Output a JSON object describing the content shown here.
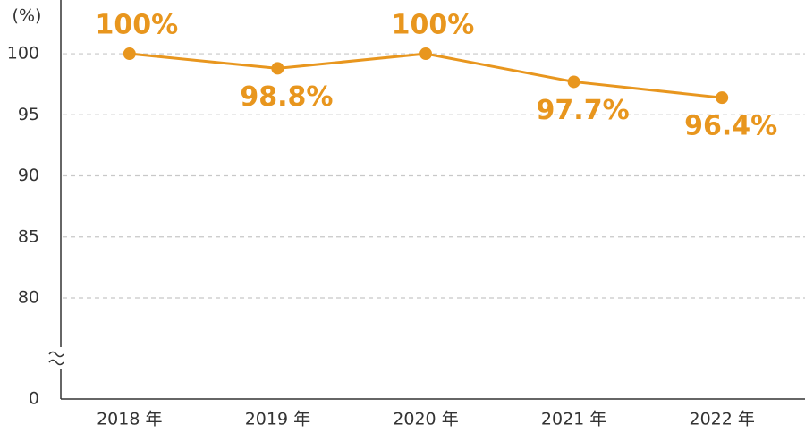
{
  "chart_data": {
    "type": "line",
    "y_unit": "(%)",
    "categories": [
      "2018 年",
      "2019 年",
      "2020 年",
      "2021 年",
      "2022 年"
    ],
    "values": [
      100,
      98.8,
      100,
      97.7,
      96.4
    ],
    "value_labels": [
      "100%",
      "98.8%",
      "100%",
      "97.7%",
      "96.4%"
    ],
    "color": "#e8961e",
    "ylim": [
      0,
      104.4
    ],
    "y_break": [
      0,
      80
    ],
    "yticks": [
      0,
      80,
      85,
      90,
      95,
      100
    ],
    "grid": true
  }
}
